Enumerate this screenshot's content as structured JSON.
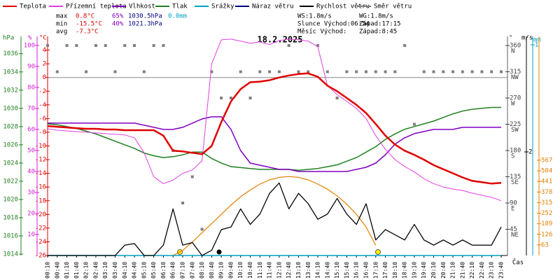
{
  "chart_data": {
    "type": "line",
    "title": "18.2.2025",
    "x_label": "Čas",
    "categories": [
      "00:10",
      "00:40",
      "01:10",
      "01:40",
      "02:10",
      "02:40",
      "03:10",
      "03:40",
      "04:10",
      "04:40",
      "05:10",
      "05:40",
      "06:10",
      "06:40",
      "07:10",
      "07:40",
      "08:10",
      "08:40",
      "09:10",
      "09:40",
      "10:10",
      "10:40",
      "11:10",
      "11:40",
      "12:10",
      "12:40",
      "13:10",
      "13:40",
      "14:10",
      "14:40",
      "15:10",
      "15:40",
      "16:10",
      "16:40",
      "17:10",
      "17:40",
      "18:10",
      "18:40",
      "19:10",
      "19:40",
      "20:10",
      "20:40",
      "21:10",
      "21:40",
      "22:10",
      "22:40",
      "23:10",
      "23:40"
    ],
    "axes": {
      "pressure": {
        "label": "hPa",
        "color": "#208020",
        "lim": [
          1013.85,
          1037.9
        ],
        "ticks": [
          1014,
          1016,
          1018,
          1020,
          1022,
          1024,
          1026,
          1028,
          1030,
          1032,
          1034,
          1036
        ]
      },
      "humidity": {
        "label": "%",
        "color": "#d020d0",
        "lim": [
          0,
          104.3
        ],
        "ticks": [
          10,
          20,
          30,
          40,
          50,
          60,
          70,
          80,
          90,
          100
        ]
      },
      "temperature": {
        "label": "°C",
        "color": "#e00000",
        "lim": [
          -26,
          6.0
        ],
        "ticks": [
          -26,
          -24,
          -22,
          -20,
          -18,
          -16,
          -14,
          -12,
          -10,
          -8,
          -6,
          -4,
          -2,
          0,
          2,
          4
        ]
      },
      "direction": {
        "label": "°",
        "color": "#404040",
        "lim": [
          0,
          375.6
        ],
        "ticks": [
          45,
          90,
          135,
          180,
          225,
          270,
          315,
          360
        ],
        "compass": [
          "NE",
          "E",
          "SE",
          "S",
          "SW",
          "W",
          "NW",
          "N"
        ]
      },
      "wind": {
        "label": "m/s",
        "color": "#000000",
        "lim": [
          0,
          4.23
        ],
        "ticks": [
          2
        ]
      },
      "rain": {
        "label": "mm",
        "color": "#00a0c0",
        "lim": [
          0,
          1.04
        ],
        "ticks": [
          1
        ]
      },
      "radiation": {
        "color": "#e08000",
        "lim": [
          0,
          1304
        ],
        "ticks": [
          63,
          126,
          189,
          252,
          315,
          378,
          441,
          504,
          567
        ]
      }
    },
    "series": [
      {
        "name": "Teplota",
        "color": "#e00000",
        "axis": "temperature",
        "width": 2.5,
        "values": [
          -7.1,
          -7.2,
          -7.3,
          -7.4,
          -7.5,
          -7.5,
          -7.6,
          -7.6,
          -7.7,
          -7.7,
          -7.7,
          -7.7,
          -8.5,
          -10.7,
          -10.8,
          -11.0,
          -11.2,
          -10.0,
          -6.5,
          -3.5,
          -1.7,
          -0.7,
          -0.6,
          -0.4,
          0.0,
          0.3,
          0.5,
          0.6,
          0.1,
          -1.2,
          -2.0,
          -3.0,
          -4.0,
          -5.2,
          -6.8,
          -8.5,
          -9.8,
          -10.7,
          -11.3,
          -12.0,
          -12.8,
          -13.4,
          -14.0,
          -14.6,
          -15.1,
          -15.3,
          -15.5,
          -15.4
        ]
      },
      {
        "name": "Přízemní teplota",
        "color": "#e040e0",
        "axis": "temperature",
        "width": 1,
        "values": [
          -7.5,
          -7.7,
          -7.8,
          -7.9,
          -8.0,
          -8.1,
          -8.2,
          -8.3,
          -8.4,
          -8.8,
          -11,
          -14.5,
          -15.5,
          -15.0,
          -14.0,
          -13.5,
          -12.2,
          2,
          5.5,
          5.6,
          5.3,
          5.0,
          5.2,
          4.8,
          5.4,
          5.6,
          5.5,
          5.3,
          4.5,
          -1.2,
          -2.5,
          -3.5,
          -4.5,
          -6.0,
          -8.5,
          -10.5,
          -12.0,
          -13.0,
          -13.8,
          -14.8,
          -15.5,
          -16.0,
          -16.3,
          -16.5,
          -16.9,
          -17.2,
          -17.5,
          -18
        ]
      },
      {
        "name": "Vlhkost",
        "color": "#8000c0",
        "axis": "humidity",
        "width": 1.5,
        "values": [
          63,
          63,
          63,
          63,
          63,
          63,
          63,
          63,
          63,
          63,
          62,
          61,
          60,
          60,
          61,
          63,
          65,
          66,
          66,
          60,
          50,
          44,
          43,
          42,
          41,
          41,
          40,
          40,
          40,
          40,
          40,
          40,
          41,
          42,
          44,
          48,
          53,
          56,
          58,
          59,
          60,
          60,
          60,
          61,
          61,
          61,
          61,
          61
        ]
      },
      {
        "name": "Tlak",
        "color": "#208020",
        "axis": "pressure",
        "width": 1.5,
        "values": [
          1028.3,
          1028.2,
          1028.0,
          1027.8,
          1027.5,
          1027.2,
          1026.8,
          1026.4,
          1026.0,
          1025.6,
          1025.1,
          1024.8,
          1024.6,
          1024.7,
          1024.9,
          1025.2,
          1025.2,
          1024.5,
          1024.0,
          1023.6,
          1023.5,
          1023.4,
          1023.3,
          1023.3,
          1023.3,
          1023.3,
          1023.2,
          1023.3,
          1023.4,
          1023.6,
          1023.8,
          1024.2,
          1024.6,
          1025.2,
          1025.8,
          1026.6,
          1027.2,
          1027.7,
          1028.0,
          1028.3,
          1028.6,
          1029.0,
          1029.4,
          1029.7,
          1029.9,
          1030.0,
          1030.1,
          1030.1
        ]
      },
      {
        "name": "Srážky",
        "color": "#00a0c0",
        "axis": "rain",
        "width": 1.5,
        "values": [
          0,
          0,
          0,
          0,
          0,
          0,
          0,
          0,
          0,
          0,
          0,
          0,
          0,
          0,
          0,
          0,
          0,
          0,
          0,
          0,
          0,
          0,
          0,
          0,
          0,
          0,
          0,
          0,
          0,
          0,
          0,
          0,
          0,
          0,
          0,
          0,
          0,
          0,
          0,
          0,
          0,
          0,
          0,
          0,
          0,
          0,
          0,
          0
        ]
      },
      {
        "name": "Náraz větru",
        "color": "#000080",
        "axis": "wind",
        "width": 1,
        "values": [
          0,
          0,
          0,
          0,
          0,
          0,
          0,
          0,
          0.2,
          0.23,
          0,
          0,
          0.2,
          0.9,
          0.2,
          0.25,
          0,
          0.1,
          0.5,
          0.55,
          0.9,
          0.6,
          0.8,
          1.2,
          1.4,
          0.9,
          1.2,
          1.0,
          0.7,
          0.8,
          1.1,
          0.8,
          0.6,
          1.0,
          0.3,
          0.5,
          0.4,
          0.3,
          0.6,
          0.3,
          0.2,
          0.3,
          0.2,
          0.3,
          0.2,
          0.2,
          0.2,
          0.55
        ]
      },
      {
        "name": "Rychlost větru",
        "color": "#000000",
        "axis": "wind",
        "width": 1.2,
        "values": [
          0,
          0,
          0,
          0,
          0,
          0,
          0,
          0,
          0.2,
          0.23,
          0,
          0,
          0.2,
          0.9,
          0.2,
          0.25,
          0,
          0.1,
          0.5,
          0.55,
          0.9,
          0.6,
          0.8,
          1.2,
          1.4,
          0.9,
          1.2,
          1.0,
          0.7,
          0.8,
          1.1,
          0.8,
          0.6,
          1.0,
          0.3,
          0.5,
          0.4,
          0.3,
          0.6,
          0.3,
          0.2,
          0.3,
          0.2,
          0.3,
          0.2,
          0.2,
          0.2,
          0.55
        ]
      },
      {
        "name": "Směr větru",
        "color": "#808080",
        "axis": "direction",
        "style": "scatter",
        "values": [
          360,
          315,
          360,
          360,
          315,
          360,
          360,
          315,
          360,
          360,
          315,
          360,
          360,
          180,
          90,
          135,
          45,
          315,
          270,
          270,
          315,
          270,
          315,
          315,
          315,
          360,
          315,
          315,
          360,
          315,
          270,
          315,
          315,
          315,
          315,
          315,
          315,
          360,
          225,
          315,
          315,
          315,
          315,
          315,
          315,
          315,
          315,
          315
        ]
      }
    ],
    "solar": {
      "color": "#e08000",
      "axis": "radiation",
      "values": [
        null,
        null,
        null,
        null,
        null,
        null,
        null,
        null,
        null,
        null,
        null,
        null,
        null,
        0,
        30,
        80,
        135,
        190,
        245,
        300,
        350,
        390,
        425,
        450,
        465,
        470,
        465,
        450,
        425,
        395,
        355,
        305,
        245,
        170,
        60,
        null,
        null,
        null,
        null,
        null,
        null,
        null,
        null,
        null,
        null,
        null,
        null,
        null
      ]
    },
    "stats": {
      "max": [
        "max",
        "0.8°C",
        "65%",
        "1030.5hPa",
        "0.0mm"
      ],
      "min": [
        "min",
        "-15.5°C",
        "40%",
        "1021.3hPa"
      ],
      "avg": [
        "avg",
        "-7.3°C"
      ],
      "wind": [
        "WS:1.8m/s",
        "WG:1.8m/s"
      ],
      "sun": [
        "Slunce Východ:06:54",
        "Západ:17:15"
      ],
      "moon": [
        "Měsíc  Východ:",
        "Západ:8:45"
      ]
    }
  }
}
